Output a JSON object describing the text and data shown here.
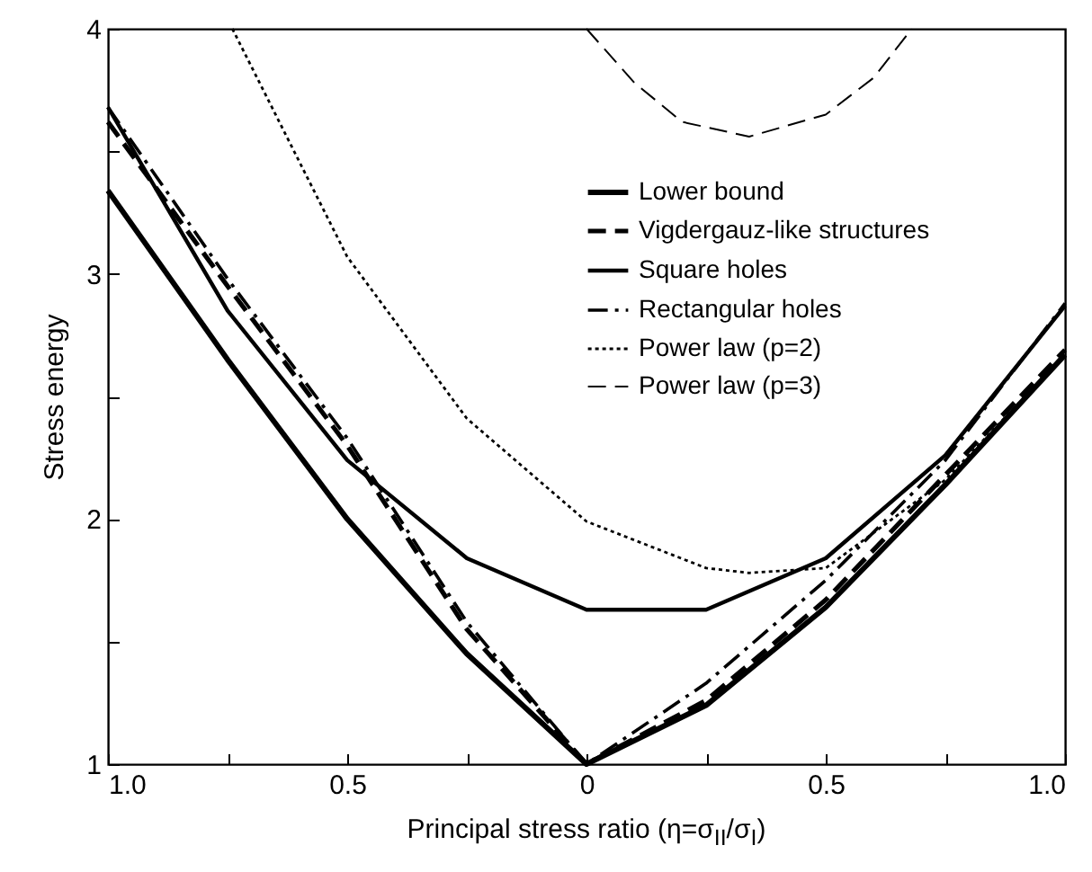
{
  "chart_data": {
    "type": "line",
    "xlabel": "Principal stress ratio (η=σ$_{II}$/σ$_{I}$)",
    "ylabel": "Stress energy",
    "xlim": [
      -1,
      1
    ],
    "xticks": [
      {
        "value": -1,
        "label": "1.0"
      },
      {
        "value": -0.75,
        "label": null
      },
      {
        "value": -0.5,
        "label": "0.5"
      },
      {
        "value": -0.25,
        "label": null
      },
      0,
      {
        "value": 0.25,
        "label": null
      },
      {
        "value": 0.5,
        "label": "0.5"
      },
      {
        "value": 0.75,
        "label": null
      },
      {
        "value": 1,
        "label": "1.0"
      }
    ],
    "ylim": [
      1,
      4
    ],
    "yticks": [
      1,
      {
        "value": 1.5,
        "label": null
      },
      2,
      {
        "value": 2.5,
        "label": null
      },
      3,
      {
        "value": 3.5,
        "label": null
      },
      4
    ],
    "grid": false,
    "legend": "top right",
    "marker": "none",
    "series": [
      {
        "name": "Lower bound",
        "color": "#000000",
        "line_style": "solid",
        "x": [
          -1,
          -0.75,
          -0.5,
          -0.25,
          0,
          0.25,
          0.5,
          0.75,
          1
        ],
        "values": [
          3.34,
          2.65,
          2.0,
          1.45,
          1.0,
          1.24,
          1.64,
          2.14,
          2.67
        ]
      },
      {
        "name": "Vigdergauz-like structures",
        "color": "#000000",
        "line_style": "dashed",
        "x": [
          -1,
          -0.75,
          -0.5,
          -0.25,
          0,
          0.25,
          0.5,
          0.75,
          1
        ],
        "values": [
          3.62,
          2.95,
          2.3,
          1.55,
          1.0,
          1.26,
          1.67,
          2.18,
          2.69
        ]
      },
      {
        "name": "Square holes",
        "color": "#000000",
        "line_style": "solid",
        "x": [
          -1,
          -0.75,
          -0.5,
          -0.25,
          0,
          0.25,
          0.5,
          0.75,
          1
        ],
        "values": [
          3.68,
          2.85,
          2.24,
          1.84,
          1.63,
          1.63,
          1.84,
          2.26,
          2.87
        ]
      },
      {
        "name": "Rectangular holes",
        "color": "#000000",
        "line_style": "dashdot",
        "x": [
          -1,
          -0.75,
          -0.5,
          -0.25,
          0,
          0.25,
          0.5,
          0.75,
          1
        ],
        "values": [
          3.68,
          2.98,
          2.33,
          1.58,
          1.0,
          1.33,
          1.75,
          2.24,
          2.88
        ]
      },
      {
        "name": "Power law (p=2)",
        "color": "#000000",
        "line_style": "dotted",
        "x": [
          -0.74,
          -0.5,
          -0.25,
          0,
          0.25,
          0.34,
          0.5,
          0.75,
          1
        ],
        "values": [
          4.0,
          3.07,
          2.41,
          1.99,
          1.8,
          1.78,
          1.8,
          2.16,
          2.67
        ]
      },
      {
        "name": "Power law (p=3)",
        "color": "#000000",
        "line_style": "dashed",
        "x": [
          0,
          0.1,
          0.2,
          0.34,
          0.5,
          0.6,
          0.68
        ],
        "values": [
          4.0,
          3.78,
          3.62,
          3.56,
          3.65,
          3.8,
          4.0
        ]
      }
    ]
  }
}
